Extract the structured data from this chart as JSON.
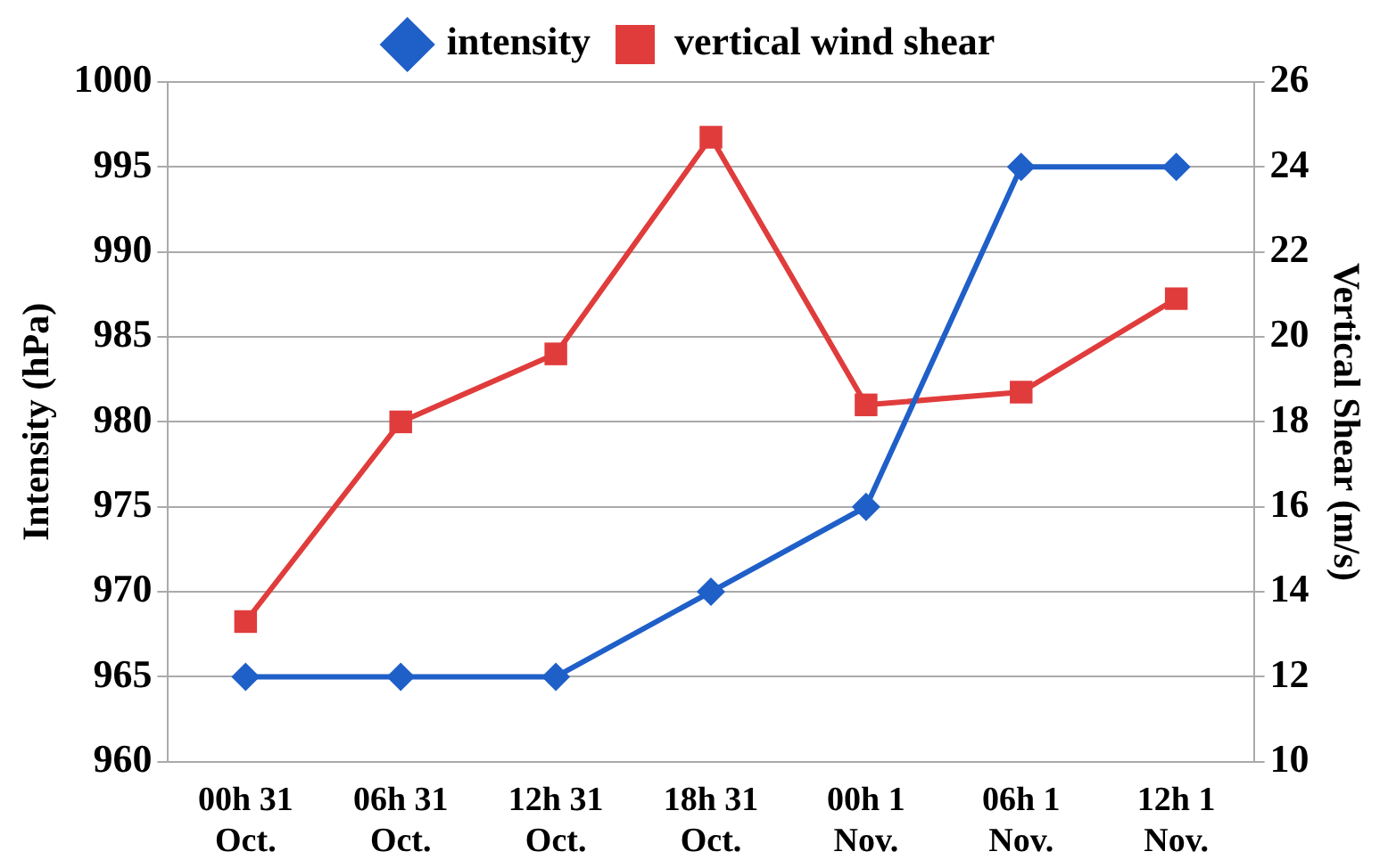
{
  "chart_data": {
    "type": "line",
    "ylabel": "Intensity (hPa)",
    "y2label": "Vertical Shear (m/s)",
    "categories": [
      "00h 31 Oct.",
      "06h 31 Oct.",
      "12h 31 Oct.",
      "18h 31 Oct.",
      "00h 1 Nov.",
      "06h 1 Nov.",
      "12h 1 Nov."
    ],
    "series": [
      {
        "name": "intensity",
        "color": "#1f5fc8",
        "marker": "diamond",
        "values": [
          965,
          965,
          965,
          970,
          975,
          995,
          995
        ]
      },
      {
        "name": "vertical wind shear",
        "color": "#e03c3c",
        "marker": "square",
        "axis": "y2",
        "values": [
          13.3,
          18.0,
          19.6,
          24.7,
          18.4,
          18.7,
          20.9
        ]
      }
    ],
    "ylim": [
      960,
      1000
    ],
    "yticks": [
      960,
      965,
      970,
      975,
      980,
      985,
      990,
      995,
      1000
    ],
    "y2lim": [
      10,
      26
    ],
    "y2ticks": [
      10,
      12,
      14,
      16,
      18,
      20,
      22,
      24,
      26
    ],
    "grid": "y",
    "legend": "top",
    "line_style": "solid"
  }
}
